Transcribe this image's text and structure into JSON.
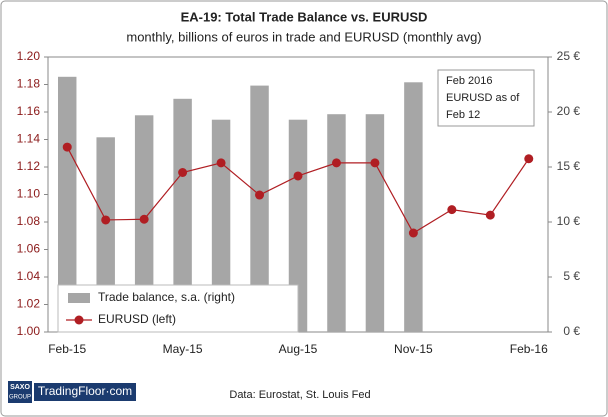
{
  "chart_data": {
    "type": "bar-line",
    "title": "EA-19: Total Trade Balance vs. EURUSD",
    "subtitle": "monthly, billions of euros in trade and EURUSD (monthly avg)",
    "categories": [
      "Feb-15",
      null,
      null,
      "May-15",
      null,
      null,
      "Aug-15",
      null,
      null,
      "Nov-15",
      null,
      null,
      "Feb-16"
    ],
    "series": [
      {
        "name": "Trade balance, s.a. (right)",
        "type": "bar",
        "axis": "y2",
        "color": "#a6a6a6",
        "values": [
          23.2,
          17.7,
          19.7,
          21.2,
          19.3,
          22.4,
          19.3,
          19.8,
          19.8,
          22.7,
          null,
          null,
          null
        ]
      },
      {
        "name": "EURUSD (left)",
        "type": "line",
        "color": "#b01e23",
        "values": [
          1.1345,
          1.0815,
          1.082,
          1.116,
          1.123,
          1.0996,
          1.1135,
          1.123,
          1.123,
          1.072,
          1.089,
          1.085,
          1.126
        ]
      }
    ],
    "ylim": [
      1.0,
      1.2
    ],
    "yticks": [
      {
        "value": 1.0,
        "label": "1.00"
      },
      {
        "value": 1.02,
        "label": "1.02"
      },
      {
        "value": 1.04,
        "label": "1.04"
      },
      {
        "value": 1.06,
        "label": "1.06"
      },
      {
        "value": 1.08,
        "label": "1.08"
      },
      {
        "value": 1.1,
        "label": "1.10"
      },
      {
        "value": 1.12,
        "label": "1.12"
      },
      {
        "value": 1.14,
        "label": "1.14"
      },
      {
        "value": 1.16,
        "label": "1.16"
      },
      {
        "value": 1.18,
        "label": "1.18"
      },
      {
        "value": 1.2,
        "label": "1.20"
      }
    ],
    "y2lim": [
      0,
      25
    ],
    "y2ticks": [
      {
        "value": 0,
        "label": "0 €"
      },
      {
        "value": 5,
        "label": "5 €"
      },
      {
        "value": 10,
        "label": "10 €"
      },
      {
        "value": 15,
        "label": "15 €"
      },
      {
        "value": 20,
        "label": "20 €"
      },
      {
        "value": 25,
        "label": "25 €"
      }
    ],
    "annotation": [
      "Feb 2016",
      "EURUSD as of",
      "Feb 12"
    ],
    "legend": "bottom-left",
    "grid": false
  },
  "footer": {
    "logo_top": "SAXO",
    "logo_bottom": "GROUP",
    "brand": "TradingFloor·com",
    "source": "Data: Eurostat, St. Louis Fed"
  }
}
